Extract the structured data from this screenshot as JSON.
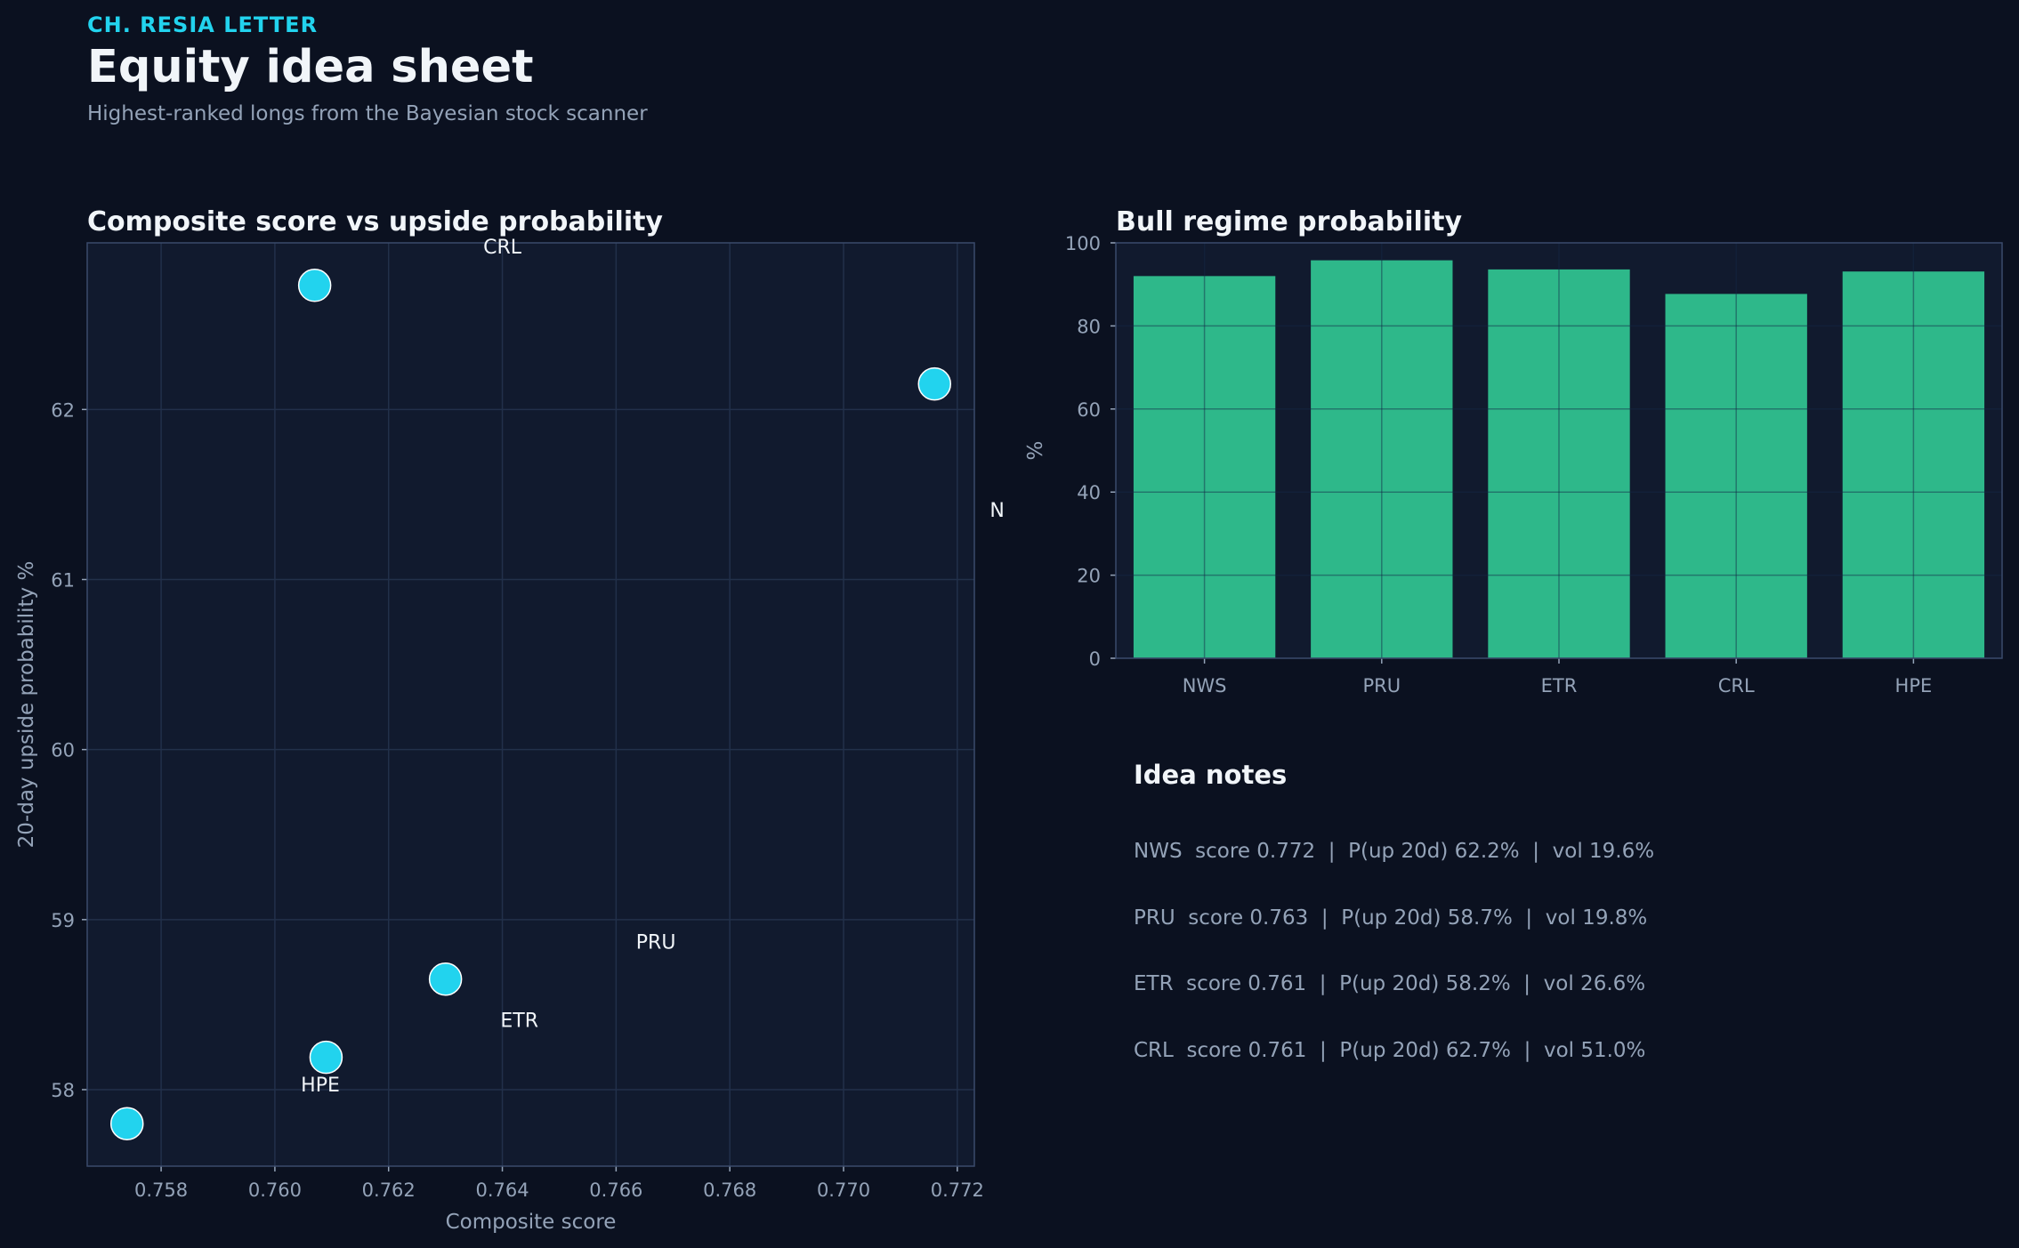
{
  "header": {
    "kicker": "CH. RESIA LETTER",
    "title": "Equity idea sheet",
    "subtitle": "Highest-ranked longs from the Bayesian stock scanner"
  },
  "colors": {
    "background": "#0b1120",
    "panel": "#111a2e",
    "scatter_point": "#22d3ee",
    "bar": "#2eb88a",
    "accent": "#22d3ee"
  },
  "chart_data": [
    {
      "type": "scatter",
      "title": "Composite score vs upside probability",
      "xlabel": "Composite score",
      "ylabel": "20-day upside probability %",
      "xlim": [
        0.7567,
        0.7723
      ],
      "ylim": [
        57.55,
        62.98
      ],
      "xticks": [
        "0.758",
        "0.760",
        "0.762",
        "0.764",
        "0.766",
        "0.768",
        "0.770",
        "0.772"
      ],
      "yticks": [
        "58",
        "59",
        "60",
        "61",
        "62"
      ],
      "grid": true,
      "points": [
        {
          "label": "CRL",
          "x": 0.7607,
          "y": 62.73
        },
        {
          "label": "NWS",
          "x": 0.7716,
          "y": 62.15
        },
        {
          "label": "PRU",
          "x": 0.763,
          "y": 58.65
        },
        {
          "label": "ETR",
          "x": 0.7609,
          "y": 58.19
        },
        {
          "label": "HPE",
          "x": 0.7574,
          "y": 57.8
        }
      ],
      "point_labels": [
        {
          "text": "CRL",
          "x": 0.764,
          "y": 62.96
        },
        {
          "text": "N",
          "x": 0.7727,
          "y": 61.41
        },
        {
          "text": "PRU",
          "x": 0.7667,
          "y": 58.87
        },
        {
          "text": "ETR",
          "x": 0.7643,
          "y": 58.41
        },
        {
          "text": "HPE",
          "x": 0.7608,
          "y": 58.03
        }
      ]
    },
    {
      "type": "bar",
      "title": "Bull regime probability",
      "xlabel": "",
      "ylabel": "%",
      "ylim": [
        0,
        100
      ],
      "yticks": [
        "0",
        "20",
        "40",
        "60",
        "80",
        "100"
      ],
      "grid": true,
      "categories": [
        "NWS",
        "PRU",
        "ETR",
        "CRL",
        "HPE"
      ],
      "values": [
        92.0,
        95.8,
        93.6,
        87.7,
        93.1
      ]
    }
  ],
  "notes": {
    "title": "Idea notes",
    "lines": [
      "NWS  score 0.772  |  P(up 20d) 62.2%  |  vol 19.6%",
      "PRU  score 0.763  |  P(up 20d) 58.7%  |  vol 19.8%",
      "ETR  score 0.761  |  P(up 20d) 58.2%  |  vol 26.6%",
      "CRL  score 0.761  |  P(up 20d) 62.7%  |  vol 51.0%"
    ]
  }
}
